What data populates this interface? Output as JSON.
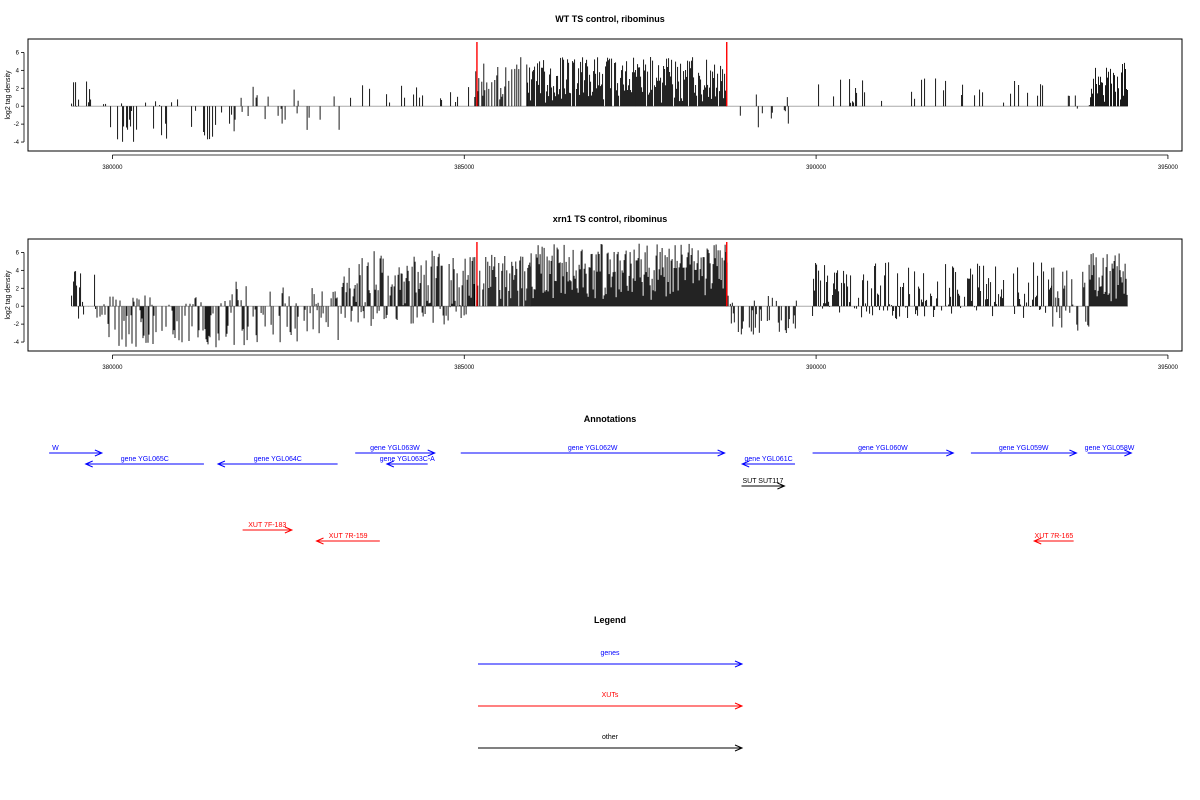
{
  "chart_data": [
    {
      "type": "bar",
      "title": "WT TS control, ribominus",
      "ylabel": "log2 tag density",
      "xlim": [
        378800,
        395200
      ],
      "ylim": [
        -5,
        7.5
      ],
      "x_ticks": [
        "380000",
        "385000",
        "390000",
        "395000"
      ],
      "y_ticks": [
        "6",
        "4",
        "2",
        "0",
        "-2",
        "-4"
      ],
      "highlight_lines_x": [
        385180,
        388730
      ],
      "highlight_color": "#ff0000",
      "segments": [
        {
          "start": 379420,
          "end": 379760,
          "density": 0.35,
          "seed": 11,
          "lo": -1.2,
          "hi": 4.2
        },
        {
          "start": 379760,
          "end": 381700,
          "density": 0.22,
          "seed": 23,
          "lo": -4.2,
          "hi": 1.0
        },
        {
          "start": 381700,
          "end": 383300,
          "density": 0.18,
          "seed": 37,
          "lo": -3.0,
          "hi": 2.2
        },
        {
          "start": 383300,
          "end": 385150,
          "density": 0.13,
          "seed": 41,
          "lo": 0.3,
          "hi": 2.6
        },
        {
          "start": 385150,
          "end": 385900,
          "density": 0.4,
          "seed": 53,
          "lo": 0.3,
          "hi": 5.5
        },
        {
          "start": 385900,
          "end": 388750,
          "density": 0.9,
          "seed": 67,
          "lo": 0.4,
          "hi": 5.5
        },
        {
          "start": 388780,
          "end": 389700,
          "density": 0.2,
          "seed": 71,
          "lo": -2.5,
          "hi": 1.5
        },
        {
          "start": 389950,
          "end": 393300,
          "density": 0.13,
          "seed": 83,
          "lo": 0.3,
          "hi": 3.2
        },
        {
          "start": 393300,
          "end": 393900,
          "density": 0.12,
          "seed": 89,
          "lo": -2.0,
          "hi": 3.0
        },
        {
          "start": 393900,
          "end": 394430,
          "density": 0.85,
          "seed": 97,
          "lo": 0.4,
          "hi": 5.0
        }
      ]
    },
    {
      "type": "bar",
      "title": "xrn1 TS control, ribominus",
      "ylabel": "log2 tag density",
      "xlim": [
        378800,
        395200
      ],
      "ylim": [
        -5,
        7.5
      ],
      "x_ticks": [
        "380000",
        "385000",
        "390000",
        "395000"
      ],
      "y_ticks": [
        "6",
        "4",
        "2",
        "0",
        "-2",
        "-4"
      ],
      "highlight_lines_x": [
        385180,
        388730
      ],
      "highlight_color": "#ff0000",
      "segments": [
        {
          "start": 379420,
          "end": 379780,
          "density": 0.45,
          "seed": 101,
          "lo": -1.5,
          "hi": 4.6
        },
        {
          "start": 379780,
          "end": 381700,
          "density": 0.55,
          "seed": 113,
          "lo": -4.6,
          "hi": 1.2
        },
        {
          "start": 381700,
          "end": 383250,
          "density": 0.45,
          "seed": 127,
          "lo": -4.5,
          "hi": 2.8
        },
        {
          "start": 383250,
          "end": 385150,
          "density": 0.9,
          "seed": 131,
          "lo": -2.2,
          "hi": 6.2
        },
        {
          "start": 385150,
          "end": 385950,
          "density": 0.85,
          "seed": 139,
          "lo": 0.4,
          "hi": 6.0
        },
        {
          "start": 385950,
          "end": 388750,
          "density": 1.1,
          "seed": 149,
          "lo": 0.5,
          "hi": 7.0
        },
        {
          "start": 388780,
          "end": 389750,
          "density": 0.5,
          "seed": 151,
          "lo": -3.2,
          "hi": 1.2
        },
        {
          "start": 389950,
          "end": 393350,
          "density": 0.7,
          "seed": 163,
          "lo": -1.5,
          "hi": 5.0
        },
        {
          "start": 393350,
          "end": 393880,
          "density": 0.7,
          "seed": 173,
          "lo": -2.8,
          "hi": 4.5
        },
        {
          "start": 393880,
          "end": 394430,
          "density": 1.0,
          "seed": 181,
          "lo": 0.5,
          "hi": 6.0
        }
      ]
    }
  ],
  "annotations": {
    "title": "Annotations",
    "x_domain": [
      378800,
      395200
    ],
    "features": [
      {
        "label": "W",
        "start": 379100,
        "end": 379850,
        "strand": "+",
        "row": 0,
        "color": "#0000ff"
      },
      {
        "label": "gene YGL065C",
        "start": 379620,
        "end": 381300,
        "strand": "-",
        "row": 1,
        "color": "#0000ff"
      },
      {
        "label": "gene YGL064C",
        "start": 381500,
        "end": 383200,
        "strand": "-",
        "row": 1,
        "color": "#0000ff"
      },
      {
        "label": "gene YGL063W",
        "start": 383450,
        "end": 384580,
        "strand": "+",
        "row": 0,
        "color": "#0000ff"
      },
      {
        "label": "gene YGL063C-A",
        "start": 383900,
        "end": 384480,
        "strand": "-",
        "row": 1,
        "color": "#0000ff"
      },
      {
        "label": "gene YGL062W",
        "start": 384950,
        "end": 388700,
        "strand": "+",
        "row": 0,
        "color": "#0000ff"
      },
      {
        "label": "gene YGL061C",
        "start": 388950,
        "end": 389700,
        "strand": "-",
        "row": 1,
        "color": "#0000ff"
      },
      {
        "label": "gene YGL060W",
        "start": 389950,
        "end": 391950,
        "strand": "+",
        "row": 0,
        "color": "#0000ff"
      },
      {
        "label": "gene YGL059W",
        "start": 392200,
        "end": 393700,
        "strand": "+",
        "row": 0,
        "color": "#0000ff"
      },
      {
        "label": "gene YGL058W",
        "start": 393860,
        "end": 394480,
        "strand": "+",
        "row": 0,
        "color": "#0000ff"
      },
      {
        "label": "SUT SUT117",
        "start": 388940,
        "end": 389550,
        "strand": "+",
        "row": 3,
        "color": "#000000"
      },
      {
        "label": "XUT 7F-183",
        "start": 381850,
        "end": 382550,
        "strand": "+",
        "row": 7,
        "color": "#ff0000"
      },
      {
        "label": "XUT 7R-159",
        "start": 382900,
        "end": 383800,
        "strand": "-",
        "row": 8,
        "color": "#ff0000"
      },
      {
        "label": "XUT 7R-165",
        "start": 393100,
        "end": 393660,
        "strand": "-",
        "row": 8,
        "color": "#ff0000"
      }
    ]
  },
  "legend": {
    "title": "Legend",
    "items": [
      {
        "label": "genes",
        "color": "#0000ff"
      },
      {
        "label": "XUTs",
        "color": "#ff0000"
      },
      {
        "label": "other",
        "color": "#000000"
      }
    ]
  }
}
